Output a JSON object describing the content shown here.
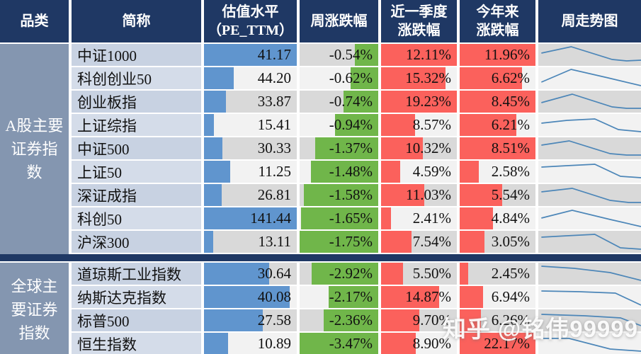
{
  "header": {
    "columns": [
      {
        "id": "category",
        "label": "品类"
      },
      {
        "id": "name",
        "label": "简称"
      },
      {
        "id": "pe",
        "label": "估值水平\n（PE_TTM）"
      },
      {
        "id": "week",
        "label": "周涨跌幅"
      },
      {
        "id": "quarter",
        "label": "近一季度\n涨跌幅"
      },
      {
        "id": "ytd",
        "label": "今年来\n涨跌幅"
      },
      {
        "id": "sparkline",
        "label": "周走势图"
      }
    ]
  },
  "colors": {
    "header_bg": "#1F3864",
    "category_bg": "#8496B0",
    "row_bg_odd": "#D9D9D9",
    "row_bg_even": "#F2F2F2",
    "name_bg_odd": "#C8D2E2",
    "name_bg_even": "#D4DCE9",
    "bar_blue": "#6095CE",
    "bar_green": "#70B64A",
    "bar_red": "#FB615C",
    "sparkline_stroke": "#4C86B8",
    "divider": "#1F3864"
  },
  "sections": [
    {
      "category": "A股主要\n证券指\n数",
      "rows": [
        {
          "name": "中证1000",
          "pe": "41.17",
          "pe_bar": 100,
          "week": "-0.54%",
          "week_bar": 30,
          "quarter": "12.11%",
          "quarter_bar": 100,
          "ytd": "11.96%",
          "ytd_bar": 100,
          "spark": "3,13 32,4 72,22 86,24 100,23"
        },
        {
          "name": "科创创业50",
          "pe": "44.20",
          "pe_bar": 32,
          "week": "-0.62%",
          "week_bar": 35,
          "quarter": "15.32%",
          "quarter_bar": 85,
          "ytd": "6.62%",
          "ytd_bar": 82,
          "spark": "3,21 32,3 68,15 100,26"
        },
        {
          "name": "创业板指",
          "pe": "33.87",
          "pe_bar": 24,
          "week": "-0.74%",
          "week_bar": 44,
          "quarter": "19.23%",
          "quarter_bar": 100,
          "ytd": "8.45%",
          "ytd_bar": 100,
          "spark": "3,17 33,5 72,23 86,25 100,25"
        },
        {
          "name": "上证综指",
          "pe": "15.41",
          "pe_bar": 11,
          "week": "-0.94%",
          "week_bar": 55,
          "quarter": "8.57%",
          "quarter_bar": 45,
          "ytd": "6.21%",
          "ytd_bar": 75,
          "spark": "3,13 28,9 55,7 78,22 100,25"
        },
        {
          "name": "中证500",
          "pe": "30.33",
          "pe_bar": 20,
          "week": "-1.37%",
          "week_bar": 80,
          "quarter": "10.32%",
          "quarter_bar": 55,
          "ytd": "8.51%",
          "ytd_bar": 100,
          "spark": "3,11 30,5 70,23 86,25 100,25"
        },
        {
          "name": "上证50",
          "pe": "11.25",
          "pe_bar": 28,
          "week": "-1.48%",
          "week_bar": 86,
          "quarter": "4.59%",
          "quarter_bar": 25,
          "ytd": "2.58%",
          "ytd_bar": 25,
          "spark": "3,9 28,7 55,5 80,22 100,24"
        },
        {
          "name": "深证成指",
          "pe": "26.81",
          "pe_bar": 19,
          "week": "-1.58%",
          "week_bar": 95,
          "quarter": "11.03%",
          "quarter_bar": 57,
          "ytd": "5.54%",
          "ytd_bar": 56,
          "spark": "3,11 33,6 70,23 88,26 100,26"
        },
        {
          "name": "科创50",
          "pe": "141.44",
          "pe_bar": 100,
          "week": "-1.65%",
          "week_bar": 98,
          "quarter": "2.41%",
          "quarter_bar": 13,
          "ytd": "4.84%",
          "ytd_bar": 44,
          "spark": "3,15 33,4 70,17 100,27"
        },
        {
          "name": "沪深300",
          "pe": "13.11",
          "pe_bar": 10,
          "week": "-1.75%",
          "week_bar": 100,
          "quarter": "7.54%",
          "quarter_bar": 40,
          "ytd": "3.05%",
          "ytd_bar": 33,
          "spark": "3,9 28,7 55,5 80,24 100,26"
        }
      ]
    },
    {
      "category": "全球主\n要证券\n指数",
      "rows": [
        {
          "name": "道琼斯工业指数",
          "pe": "30.64",
          "pe_bar": 70,
          "week": "-2.92%",
          "week_bar": 85,
          "quarter": "5.50%",
          "quarter_bar": 29,
          "ytd": "2.45%",
          "ytd_bar": 11,
          "spark": "3,5 35,8 70,14 100,25"
        },
        {
          "name": "纳斯达克指数",
          "pe": "40.08",
          "pe_bar": 92,
          "week": "-2.17%",
          "week_bar": 63,
          "quarter": "14.87%",
          "quarter_bar": 77,
          "ytd": "6.94%",
          "ytd_bar": 31,
          "spark": "3,7 40,8 75,10 100,27"
        },
        {
          "name": "标普500",
          "pe": "27.58",
          "pe_bar": 63,
          "week": "-2.36%",
          "week_bar": 69,
          "quarter": "9.70%",
          "quarter_bar": 50,
          "ytd": "6.26%",
          "ytd_bar": 28,
          "spark": "3,7 45,9 80,12 100,23"
        },
        {
          "name": "恒生指数",
          "pe": "10.89",
          "pe_bar": 26,
          "week": "-3.47%",
          "week_bar": 100,
          "quarter": "8.90%",
          "quarter_bar": 46,
          "ytd": "22.17%",
          "ytd_bar": 100,
          "spark": "3,8 30,8 70,23 100,26"
        }
      ]
    }
  ],
  "watermark": "知乎 @铭伟99999",
  "chart_data": {
    "type": "table",
    "columns": [
      "品类",
      "简称",
      "估值水平（PE_TTM）",
      "周涨跌幅",
      "近一季度涨跌幅",
      "今年来涨跌幅",
      "周走势图"
    ],
    "groups": [
      {
        "category": "A股主要证券指数",
        "rows": [
          [
            "中证1000",
            41.17,
            -0.54,
            12.11,
            11.96
          ],
          [
            "科创创业50",
            44.2,
            -0.62,
            15.32,
            6.62
          ],
          [
            "创业板指",
            33.87,
            -0.74,
            19.23,
            8.45
          ],
          [
            "上证综指",
            15.41,
            -0.94,
            8.57,
            6.21
          ],
          [
            "中证500",
            30.33,
            -1.37,
            10.32,
            8.51
          ],
          [
            "上证50",
            11.25,
            -1.48,
            4.59,
            2.58
          ],
          [
            "深证成指",
            26.81,
            -1.58,
            11.03,
            5.54
          ],
          [
            "科创50",
            141.44,
            -1.65,
            2.41,
            4.84
          ],
          [
            "沪深300",
            13.11,
            -1.75,
            7.54,
            3.05
          ]
        ]
      },
      {
        "category": "全球主要证券指数",
        "rows": [
          [
            "道琼斯工业指数",
            30.64,
            -2.92,
            5.5,
            2.45
          ],
          [
            "纳斯达克指数",
            40.08,
            -2.17,
            14.87,
            6.94
          ],
          [
            "标普500",
            27.58,
            -2.36,
            9.7,
            6.26
          ],
          [
            "恒生指数",
            10.89,
            -3.47,
            8.9,
            22.17
          ]
        ]
      }
    ],
    "notes": "负周涨跌幅以绿色数据条(右对齐)显示, 正值季度/今年来涨跌幅以红色数据条(左对齐)显示, PE以蓝色数据条显示, 周走势图为折线迷你图"
  }
}
